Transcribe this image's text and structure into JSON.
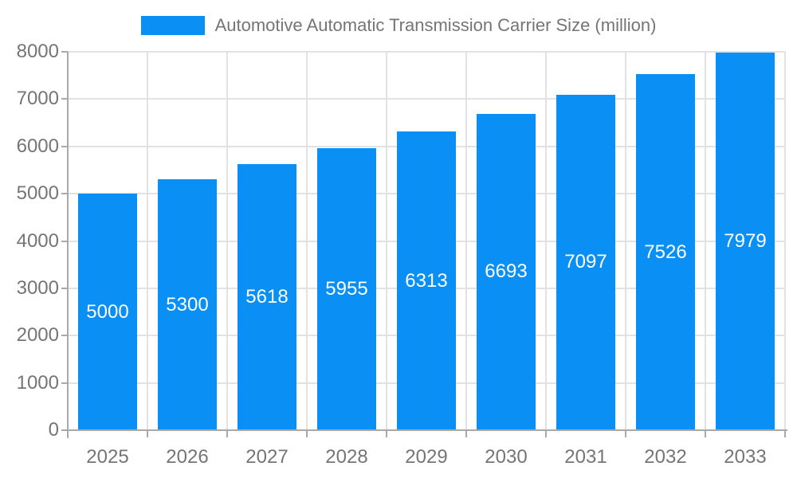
{
  "chart_data": {
    "type": "bar",
    "title": "Automotive Automatic Transmission Carrier Size (million)",
    "categories": [
      "2025",
      "2026",
      "2027",
      "2028",
      "2029",
      "2030",
      "2031",
      "2032",
      "2033"
    ],
    "values": [
      5000,
      5300,
      5618,
      5955,
      6313,
      6693,
      7097,
      7526,
      7979
    ],
    "value_labels": [
      "5000",
      "5300",
      "5618",
      "5955",
      "6313",
      "6693",
      "7097",
      "7526",
      "7979"
    ],
    "xlabel": "",
    "ylabel": "",
    "ylim": [
      0,
      8000
    ],
    "y_ticks": [
      0,
      1000,
      2000,
      3000,
      4000,
      5000,
      6000,
      7000,
      8000
    ],
    "grid": "on",
    "legend_position": "top",
    "colors": {
      "bar": "#0a8ff5",
      "value_label": "#ffffff",
      "axis_label": "#757575",
      "title": "#757575",
      "gridline": "#e2e2e2",
      "axis_line": "#a9a9a9",
      "background": "#ffffff"
    }
  }
}
